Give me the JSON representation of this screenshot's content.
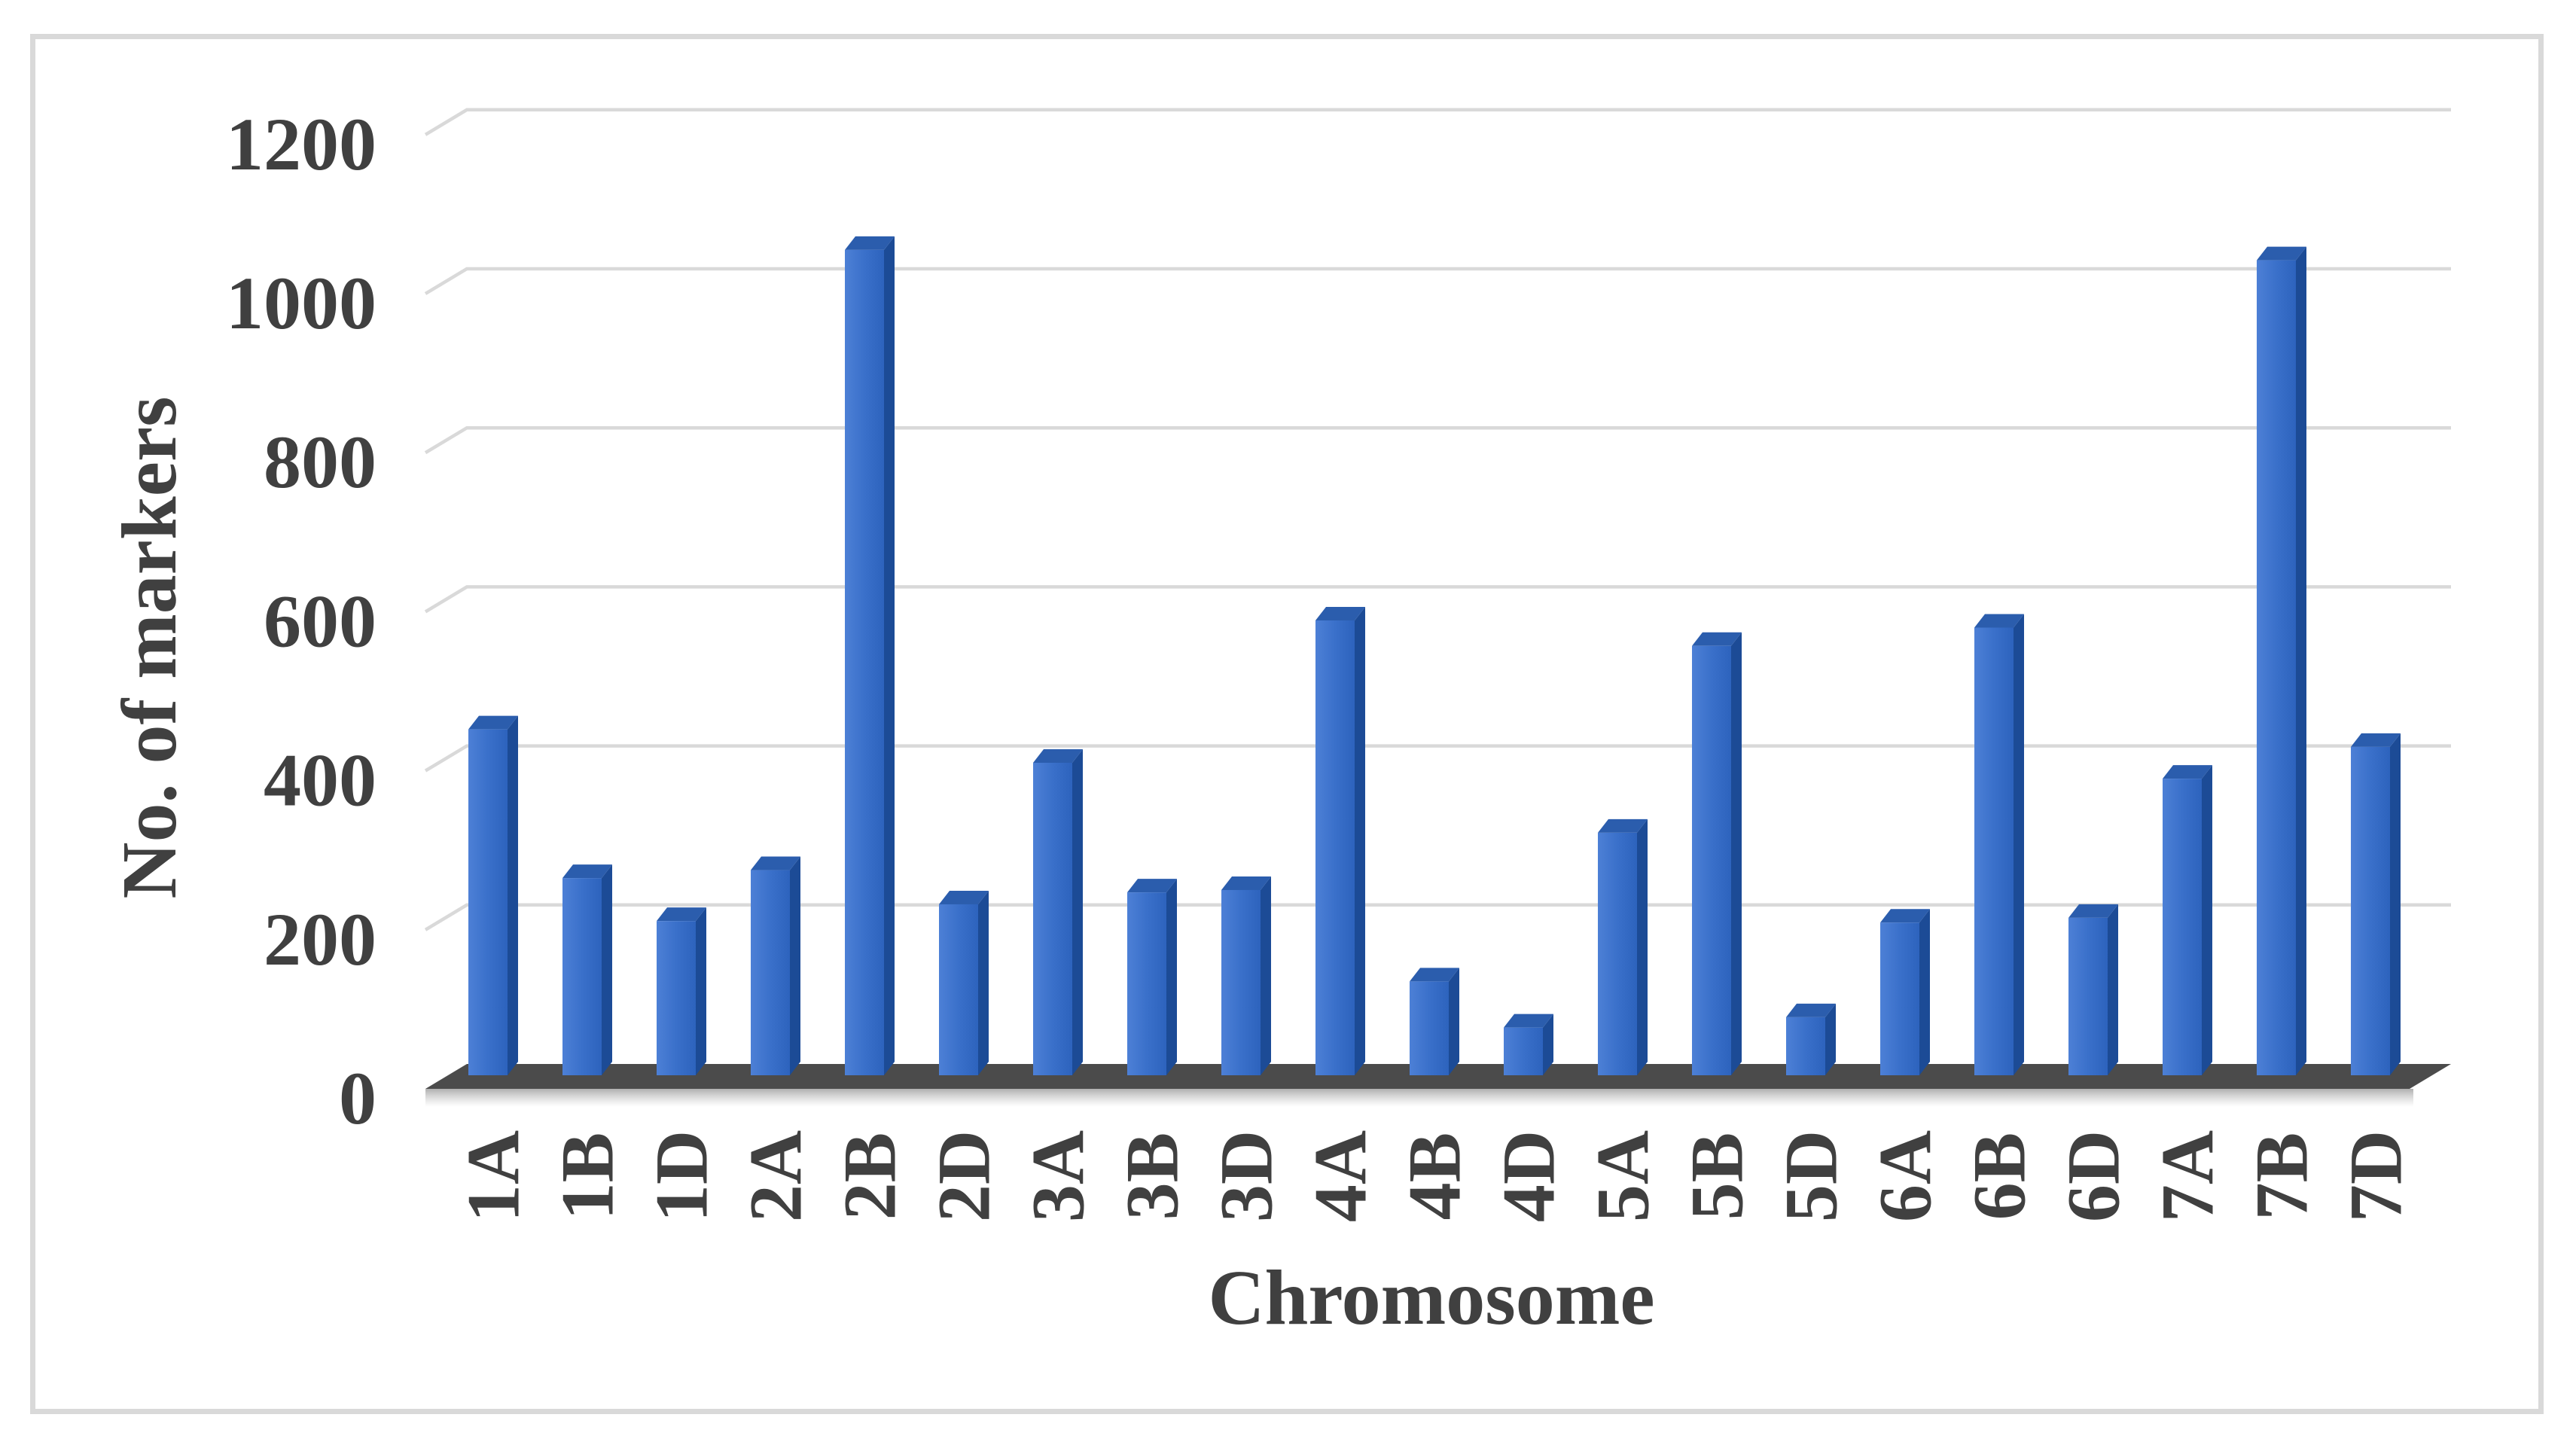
{
  "figure": {
    "description": "3D clustered column chart of marker counts per wheat chromosome",
    "background": "#ffffff",
    "border_color": "#d9d9d9"
  },
  "chart_data": {
    "type": "bar",
    "style": "3d-column",
    "title": "",
    "xlabel": "Chromosome",
    "ylabel": "No. of markers",
    "categories": [
      "1A",
      "1B",
      "1D",
      "2A",
      "2B",
      "2D",
      "3A",
      "3B",
      "3D",
      "4A",
      "4B",
      "4D",
      "5A",
      "5B",
      "5D",
      "6A",
      "6B",
      "6D",
      "7A",
      "7B",
      "7D"
    ],
    "values": [
      435,
      248,
      194,
      258,
      1038,
      215,
      393,
      230,
      233,
      572,
      118,
      60,
      305,
      540,
      73,
      192,
      563,
      198,
      373,
      1025,
      413
    ],
    "ylim": [
      0,
      1200
    ],
    "yticks": [
      0,
      200,
      400,
      600,
      800,
      1000,
      1200
    ],
    "grid": "horizontal",
    "legend": "none",
    "x_tick_rotation_deg": -90,
    "colors": {
      "bar_front_light": "#4d80d6",
      "bar_front": "#3a70ca",
      "bar_front_dark": "#2d63bd",
      "bar_side": "#1c4b96",
      "bar_top": "#2b5dad",
      "platform": "#4b4b4b",
      "gridline": "#d9d9d9",
      "border": "#d9d9d9",
      "text": "#404040",
      "background": "#ffffff"
    }
  }
}
